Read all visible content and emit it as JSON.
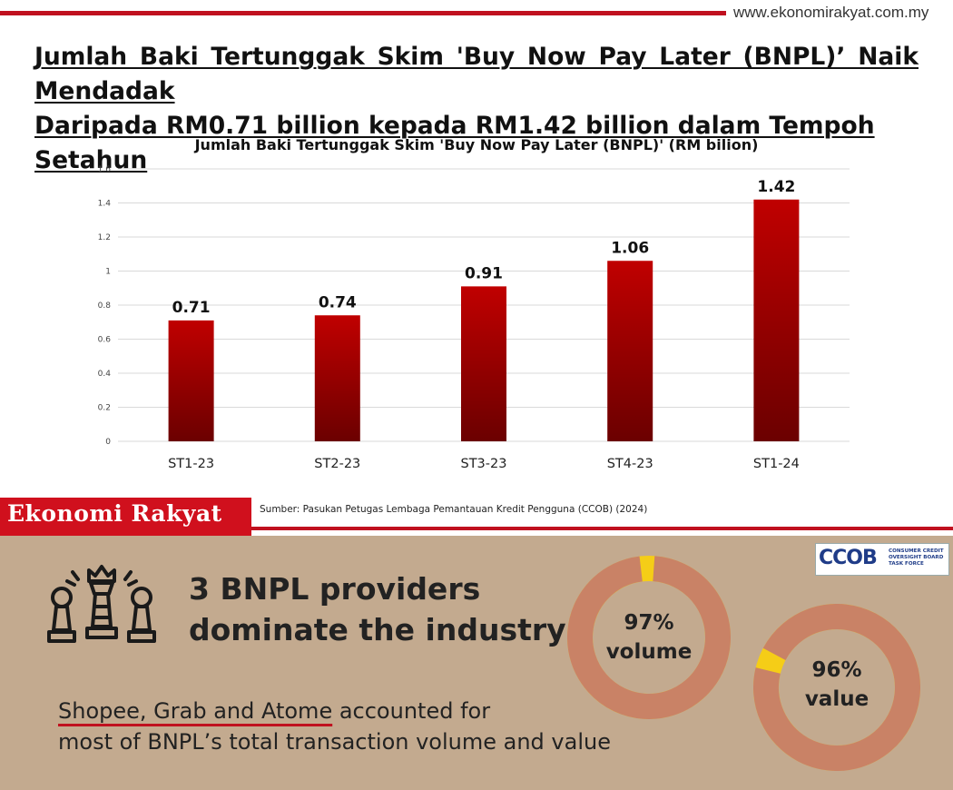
{
  "header": {
    "site_url": "www.ekonomirakyat.com.my",
    "headline_line1": "Jumlah Baki Tertunggak Skim 'Buy Now Pay Later (BNPL)’ Naik Mendadak",
    "headline_line2": "Daripada RM0.71 billion kepada RM1.42 billion dalam Tempoh Setahun"
  },
  "colors": {
    "brand_red": "#c0111f",
    "bar_top": "#c00000",
    "bar_bottom": "#6b0000",
    "panel_bg": "#c3aa8f",
    "donut_ring": "#c98266",
    "donut_accent": "#f5cd17"
  },
  "chart_data": {
    "type": "bar",
    "title": "Jumlah Baki Tertunggak Skim 'Buy Now Pay Later (BNPL)' (RM bilion)",
    "categories": [
      "ST1-23",
      "ST2-23",
      "ST3-23",
      "ST4-23",
      "ST1-24"
    ],
    "values": [
      0.71,
      0.74,
      0.91,
      1.06,
      1.42
    ],
    "data_labels": [
      "0.71",
      "0.74",
      "0.91",
      "1.06",
      "1.42"
    ],
    "yticks": [
      "0",
      "0.2",
      "0.4",
      "0.6",
      "0.8",
      "1",
      "1.2",
      "1.4",
      "1.6"
    ],
    "ylim": [
      0,
      1.6
    ],
    "grid": true,
    "legend": "none"
  },
  "source_note": "Sumber: Pasukan Petugas Lembaga Pemantauan Kredit Pengguna (CCOB) (2024)",
  "brand": {
    "name": "Ekonomi Rakyat"
  },
  "infographic": {
    "icon": "chess-pieces-icon",
    "heading_line1": "3 BNPL providers",
    "heading_line2": "dominate the industry",
    "body_underlined": "Shopee, Grab and Atome",
    "body_rest": " accounted for",
    "body_line2": "most of BNPL’s total transaction volume and value",
    "logo": {
      "mark": "CCOB",
      "sub_line1": "CONSUMER CREDIT",
      "sub_line2": "OVERSIGHT BOARD",
      "sub_line3": "TASK FORCE"
    },
    "donuts": [
      {
        "percent": 97,
        "pct_label": "97%",
        "word": "volume"
      },
      {
        "percent": 96,
        "pct_label": "96%",
        "word": "value"
      }
    ]
  }
}
